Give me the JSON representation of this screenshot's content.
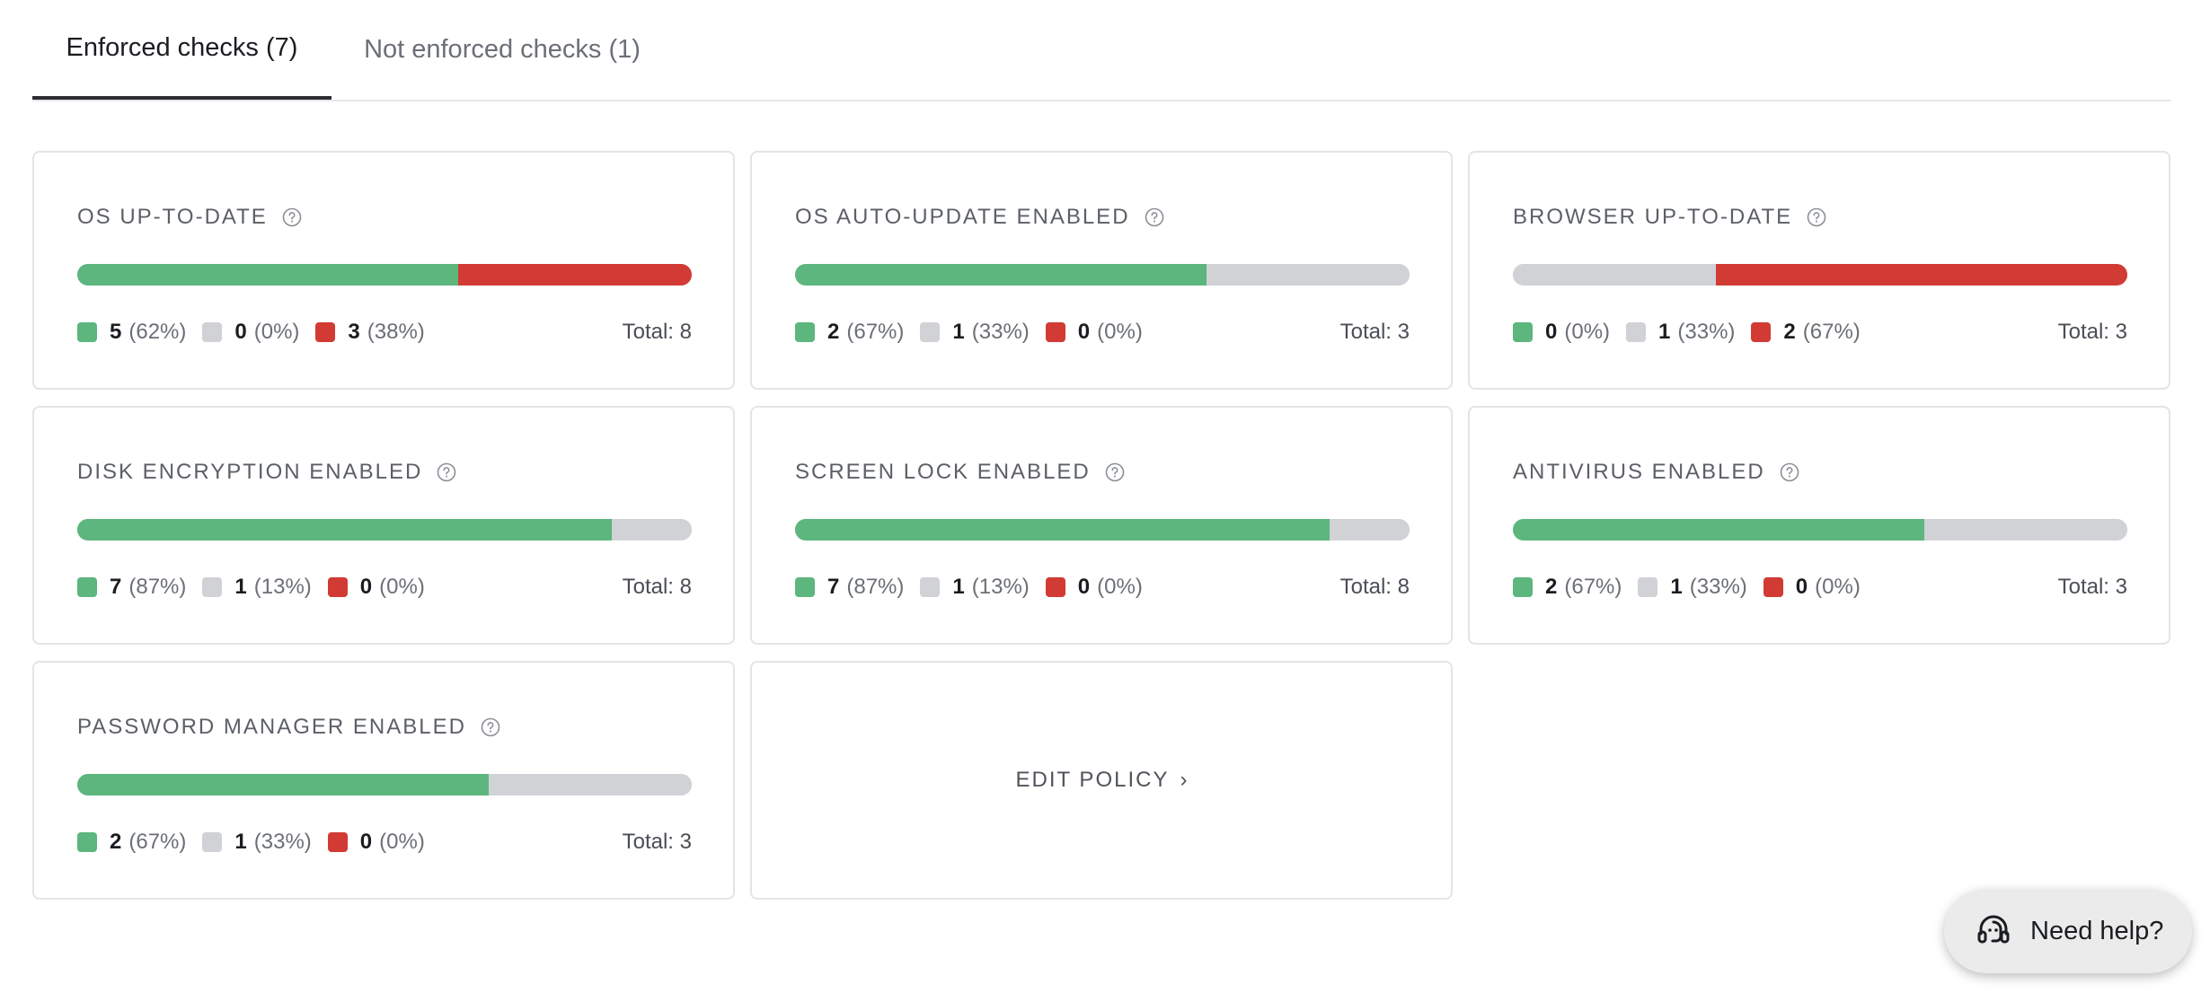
{
  "tabs": [
    {
      "label": "Enforced checks (7)",
      "active": true
    },
    {
      "label": "Not enforced checks (1)",
      "active": false
    }
  ],
  "colors": {
    "pass": "#5cb67e",
    "unknown": "#d0d2d6",
    "fail": "#d13b34"
  },
  "checks": [
    {
      "title": "OS UP-TO-DATE",
      "pass": {
        "count": "5",
        "pct": "(62%)"
      },
      "unknown": {
        "count": "0",
        "pct": "(0%)"
      },
      "fail": {
        "count": "3",
        "pct": "(38%)"
      },
      "total": "Total: 8",
      "fractions": [
        0.62,
        0.0,
        0.38
      ]
    },
    {
      "title": "OS AUTO-UPDATE ENABLED",
      "pass": {
        "count": "2",
        "pct": "(67%)"
      },
      "unknown": {
        "count": "1",
        "pct": "(33%)"
      },
      "fail": {
        "count": "0",
        "pct": "(0%)"
      },
      "total": "Total: 3",
      "fractions": [
        0.67,
        0.33,
        0.0
      ]
    },
    {
      "title": "BROWSER UP-TO-DATE",
      "pass": {
        "count": "0",
        "pct": "(0%)"
      },
      "unknown": {
        "count": "1",
        "pct": "(33%)"
      },
      "fail": {
        "count": "2",
        "pct": "(67%)"
      },
      "total": "Total: 3",
      "fractions": [
        0.0,
        0.33,
        0.67
      ]
    },
    {
      "title": "DISK ENCRYPTION ENABLED",
      "pass": {
        "count": "7",
        "pct": "(87%)"
      },
      "unknown": {
        "count": "1",
        "pct": "(13%)"
      },
      "fail": {
        "count": "0",
        "pct": "(0%)"
      },
      "total": "Total: 8",
      "fractions": [
        0.87,
        0.13,
        0.0
      ]
    },
    {
      "title": "SCREEN LOCK ENABLED",
      "pass": {
        "count": "7",
        "pct": "(87%)"
      },
      "unknown": {
        "count": "1",
        "pct": "(13%)"
      },
      "fail": {
        "count": "0",
        "pct": "(0%)"
      },
      "total": "Total: 8",
      "fractions": [
        0.87,
        0.13,
        0.0
      ]
    },
    {
      "title": "ANTIVIRUS ENABLED",
      "pass": {
        "count": "2",
        "pct": "(67%)"
      },
      "unknown": {
        "count": "1",
        "pct": "(33%)"
      },
      "fail": {
        "count": "0",
        "pct": "(0%)"
      },
      "total": "Total: 3",
      "fractions": [
        0.67,
        0.33,
        0.0
      ]
    },
    {
      "title": "PASSWORD MANAGER ENABLED",
      "pass": {
        "count": "2",
        "pct": "(67%)"
      },
      "unknown": {
        "count": "1",
        "pct": "(33%)"
      },
      "fail": {
        "count": "0",
        "pct": "(0%)"
      },
      "total": "Total: 3",
      "fractions": [
        0.67,
        0.33,
        0.0
      ]
    }
  ],
  "edit_policy": {
    "label": "EDIT POLICY",
    "chevron": "›"
  },
  "help_button": {
    "label": "Need help?",
    "icon": "headset-icon"
  }
}
